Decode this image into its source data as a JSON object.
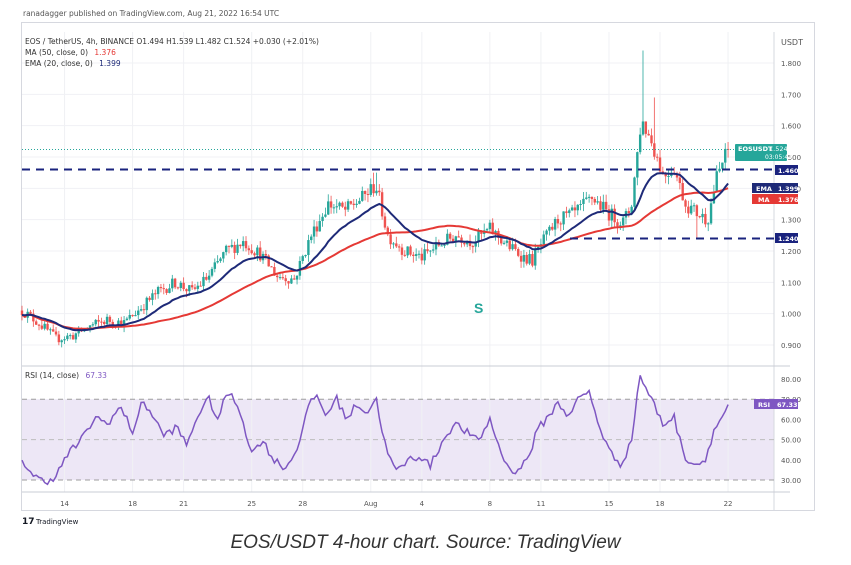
{
  "header": {
    "publisher": "ranadagger published on TradingView.com, Aug 21, 2022 16:54 UTC"
  },
  "legend": {
    "symbol_line": "EOS / TetherUS, 4h, BINANCE  O1.494  H1.539  L1.482  C1.524  +0.030 (+2.01%)",
    "ma_line_label": "MA (50, close, 0)",
    "ma_line_value": "1.376",
    "ema_line_label": "EMA (20, close, 0)",
    "ema_line_value": "1.399"
  },
  "rsi_legend": {
    "label": "RSI (14, close)",
    "value": "67.33"
  },
  "price_axis": {
    "unit": "USDT"
  },
  "annotation": {
    "text": "S"
  },
  "badges": {
    "eosusdt": {
      "label": "EOSUSDT",
      "value": "1.524",
      "countdown": "03:05:44"
    },
    "level_upper": "1.460",
    "level_lower": "1.240",
    "ema": {
      "label": "EMA",
      "value": "1.399"
    },
    "ma": {
      "label": "MA",
      "value": "1.376"
    },
    "rsi": {
      "label": "RSI",
      "value": "67.33"
    }
  },
  "watermark": "TradingView",
  "caption": "EOS/USDT 4-hour chart. Source: TradingView",
  "colors": {
    "up": "#26a69a",
    "down": "#ef5350",
    "ema": "#1e2a78",
    "ma": "#e53935",
    "level": "#1a237e",
    "rsi_line": "#7e57c2",
    "rsi_band": "#ede7f6"
  },
  "chart_data": {
    "type": "candlestick",
    "ylim": [
      0.85,
      1.9
    ],
    "y_ticks": [
      "1.800",
      "1.700",
      "1.600",
      "1.500",
      "1.400",
      "1.300",
      "1.200",
      "1.100",
      "1.000",
      "0.900"
    ],
    "y_tick_values": [
      1.8,
      1.7,
      1.6,
      1.5,
      1.4,
      1.3,
      1.2,
      1.1,
      1.0,
      0.9
    ],
    "x_ticks": [
      "14",
      "18",
      "21",
      "25",
      "28",
      "Aug",
      "4",
      "8",
      "11",
      "15",
      "18",
      "22"
    ],
    "x_tick_days": [
      14,
      18,
      21,
      25,
      28,
      32,
      35,
      39,
      42,
      46,
      49,
      53
    ],
    "x_range_days": [
      11.5,
      55.7
    ],
    "levels": [
      1.46,
      1.24
    ],
    "price_waypoints": [
      [
        11.5,
        1.01
      ],
      [
        12.5,
        0.97
      ],
      [
        13.5,
        0.92
      ],
      [
        14.5,
        0.93
      ],
      [
        15.5,
        0.96
      ],
      [
        16.5,
        0.98
      ],
      [
        17.5,
        0.97
      ],
      [
        18.5,
        1.02
      ],
      [
        19.5,
        1.07
      ],
      [
        20.5,
        1.1
      ],
      [
        21.5,
        1.07
      ],
      [
        22.5,
        1.12
      ],
      [
        23.5,
        1.2
      ],
      [
        24.5,
        1.23
      ],
      [
        25.5,
        1.19
      ],
      [
        26.5,
        1.12
      ],
      [
        27.5,
        1.11
      ],
      [
        28.5,
        1.25
      ],
      [
        29.5,
        1.35
      ],
      [
        30.5,
        1.33
      ],
      [
        31.5,
        1.37
      ],
      [
        32.3,
        1.41
      ],
      [
        33.0,
        1.25
      ],
      [
        34.0,
        1.2
      ],
      [
        35.0,
        1.18
      ],
      [
        36.0,
        1.22
      ],
      [
        37.0,
        1.25
      ],
      [
        38.0,
        1.23
      ],
      [
        39.0,
        1.27
      ],
      [
        40.0,
        1.22
      ],
      [
        41.0,
        1.18
      ],
      [
        41.5,
        1.17
      ],
      [
        42.0,
        1.22
      ],
      [
        43.0,
        1.3
      ],
      [
        44.0,
        1.32
      ],
      [
        45.0,
        1.37
      ],
      [
        46.0,
        1.32
      ],
      [
        46.8,
        1.29
      ],
      [
        47.3,
        1.34
      ],
      [
        47.9,
        1.62
      ],
      [
        48.5,
        1.55
      ],
      [
        49.2,
        1.44
      ],
      [
        49.8,
        1.47
      ],
      [
        50.5,
        1.35
      ],
      [
        51.2,
        1.32
      ],
      [
        51.8,
        1.3
      ],
      [
        52.3,
        1.43
      ],
      [
        52.8,
        1.5
      ],
      [
        53.0,
        1.524
      ]
    ],
    "rsi": {
      "ylim": [
        25,
        85
      ],
      "y_ticks": [
        "80.00",
        "70.00",
        "60.00",
        "50.00",
        "40.00",
        "30.00"
      ],
      "y_tick_values": [
        80,
        70,
        60,
        50,
        40,
        30
      ],
      "band": [
        30,
        70
      ],
      "waypoints": [
        [
          11.5,
          40
        ],
        [
          12.2,
          32
        ],
        [
          12.8,
          29
        ],
        [
          13.5,
          32
        ],
        [
          14.2,
          43
        ],
        [
          15.0,
          50
        ],
        [
          15.8,
          61
        ],
        [
          16.5,
          58
        ],
        [
          17.3,
          66
        ],
        [
          18.0,
          54
        ],
        [
          18.6,
          69
        ],
        [
          19.2,
          62
        ],
        [
          19.8,
          52
        ],
        [
          20.6,
          56
        ],
        [
          21.2,
          47
        ],
        [
          21.8,
          62
        ],
        [
          22.5,
          70
        ],
        [
          23.0,
          60
        ],
        [
          23.6,
          74
        ],
        [
          24.3,
          65
        ],
        [
          25.0,
          43
        ],
        [
          25.6,
          50
        ],
        [
          26.3,
          40
        ],
        [
          27.0,
          36
        ],
        [
          27.6,
          44
        ],
        [
          28.3,
          65
        ],
        [
          28.8,
          73
        ],
        [
          29.3,
          62
        ],
        [
          30.0,
          70
        ],
        [
          30.6,
          60
        ],
        [
          31.2,
          68
        ],
        [
          31.8,
          63
        ],
        [
          32.3,
          71
        ],
        [
          32.9,
          45
        ],
        [
          33.5,
          34
        ],
        [
          34.2,
          40
        ],
        [
          34.9,
          42
        ],
        [
          35.5,
          37
        ],
        [
          36.2,
          49
        ],
        [
          36.9,
          58
        ],
        [
          37.6,
          54
        ],
        [
          38.3,
          49
        ],
        [
          39.0,
          60
        ],
        [
          39.6,
          45
        ],
        [
          40.2,
          34
        ],
        [
          40.8,
          36
        ],
        [
          41.3,
          42
        ],
        [
          41.8,
          55
        ],
        [
          42.3,
          60
        ],
        [
          43.0,
          68
        ],
        [
          43.6,
          62
        ],
        [
          44.2,
          70
        ],
        [
          44.8,
          74
        ],
        [
          45.5,
          55
        ],
        [
          46.1,
          43
        ],
        [
          46.7,
          38
        ],
        [
          47.3,
          48
        ],
        [
          47.8,
          82
        ],
        [
          48.5,
          70
        ],
        [
          49.2,
          57
        ],
        [
          49.8,
          62
        ],
        [
          50.4,
          42
        ],
        [
          51.0,
          38
        ],
        [
          51.6,
          39
        ],
        [
          52.2,
          55
        ],
        [
          52.7,
          62
        ],
        [
          53.0,
          67.33
        ]
      ]
    },
    "ema_period": 20,
    "ma_period": 50
  }
}
